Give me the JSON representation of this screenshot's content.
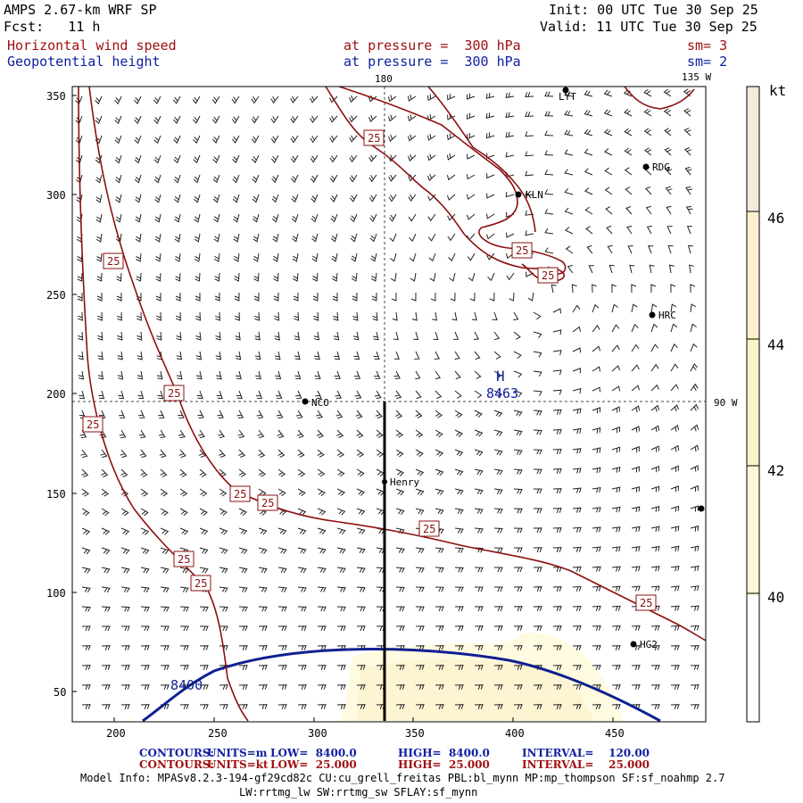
{
  "header": {
    "model": "AMPS 2.67-km WRF SP",
    "init": "Init: 00 UTC Tue 30 Sep 25",
    "fcst": "Fcst:   11 h",
    "valid": "Valid: 11 UTC Tue 30 Sep 25",
    "field1": "Horizontal wind speed",
    "field2": "Geopotential height",
    "level1": "at pressure =  300 hPa",
    "level2": "at pressure =  300 hPa",
    "sm1": "sm= 3",
    "sm2": "sm= 2"
  },
  "map": {
    "x_ticks": [
      "200",
      "250",
      "300",
      "350",
      "400",
      "450"
    ],
    "y_ticks": [
      "350",
      "300",
      "250",
      "200",
      "150",
      "100",
      "50"
    ],
    "meridian_180": "180",
    "meridian_135w": "135 W",
    "meridian_90w": "90 W",
    "high_symbol": "H",
    "high_value": "8463",
    "height_contour_label": "8400",
    "wind_contour_label": "25",
    "stations": [
      {
        "id": "lyt",
        "label": "LYT"
      },
      {
        "id": "rdg",
        "label": "RDG"
      },
      {
        "id": "kln",
        "label": "KLN"
      },
      {
        "id": "hrc",
        "label": "HRC"
      },
      {
        "id": "nco",
        "label": "NCO"
      },
      {
        "id": "henry",
        "label": "Henry"
      },
      {
        "id": "hg2",
        "label": "HG2"
      }
    ],
    "colors": {
      "wind_contour": "#8b1010",
      "height_contour": "#102090",
      "shading_40": "#fffbe0",
      "shading_42": "#fdf3c8",
      "shading_44": "#fcefcf",
      "shading_46": "#f7e8dc"
    }
  },
  "colorbar": {
    "unit": "kt",
    "levels": [
      "46",
      "44",
      "42",
      "40"
    ]
  },
  "footer": {
    "row1_label": "CONTOURS:",
    "row1_units": "UNITS=m",
    "row1_low": "LOW=  8400.0",
    "row1_high": "HIGH=  8400.0",
    "row1_interval": "INTERVAL=    120.00",
    "row2_label": "CONTOURS:",
    "row2_units": "UNITS=kt",
    "row2_low": "LOW=  25.000",
    "row2_high": "HIGH=  25.000",
    "row2_interval": "INTERVAL=    25.000",
    "model_info": "Model Info: MPASv8.2.3-194-gf29cd82c CU:cu_grell_freitas PBL:bl_mynn MP:mp_thompson SF:sf_noahmp 2.7",
    "model_info2": "LW:rrtmg_lw SW:rrtmg_sw SFLAY:sf_mynn"
  }
}
